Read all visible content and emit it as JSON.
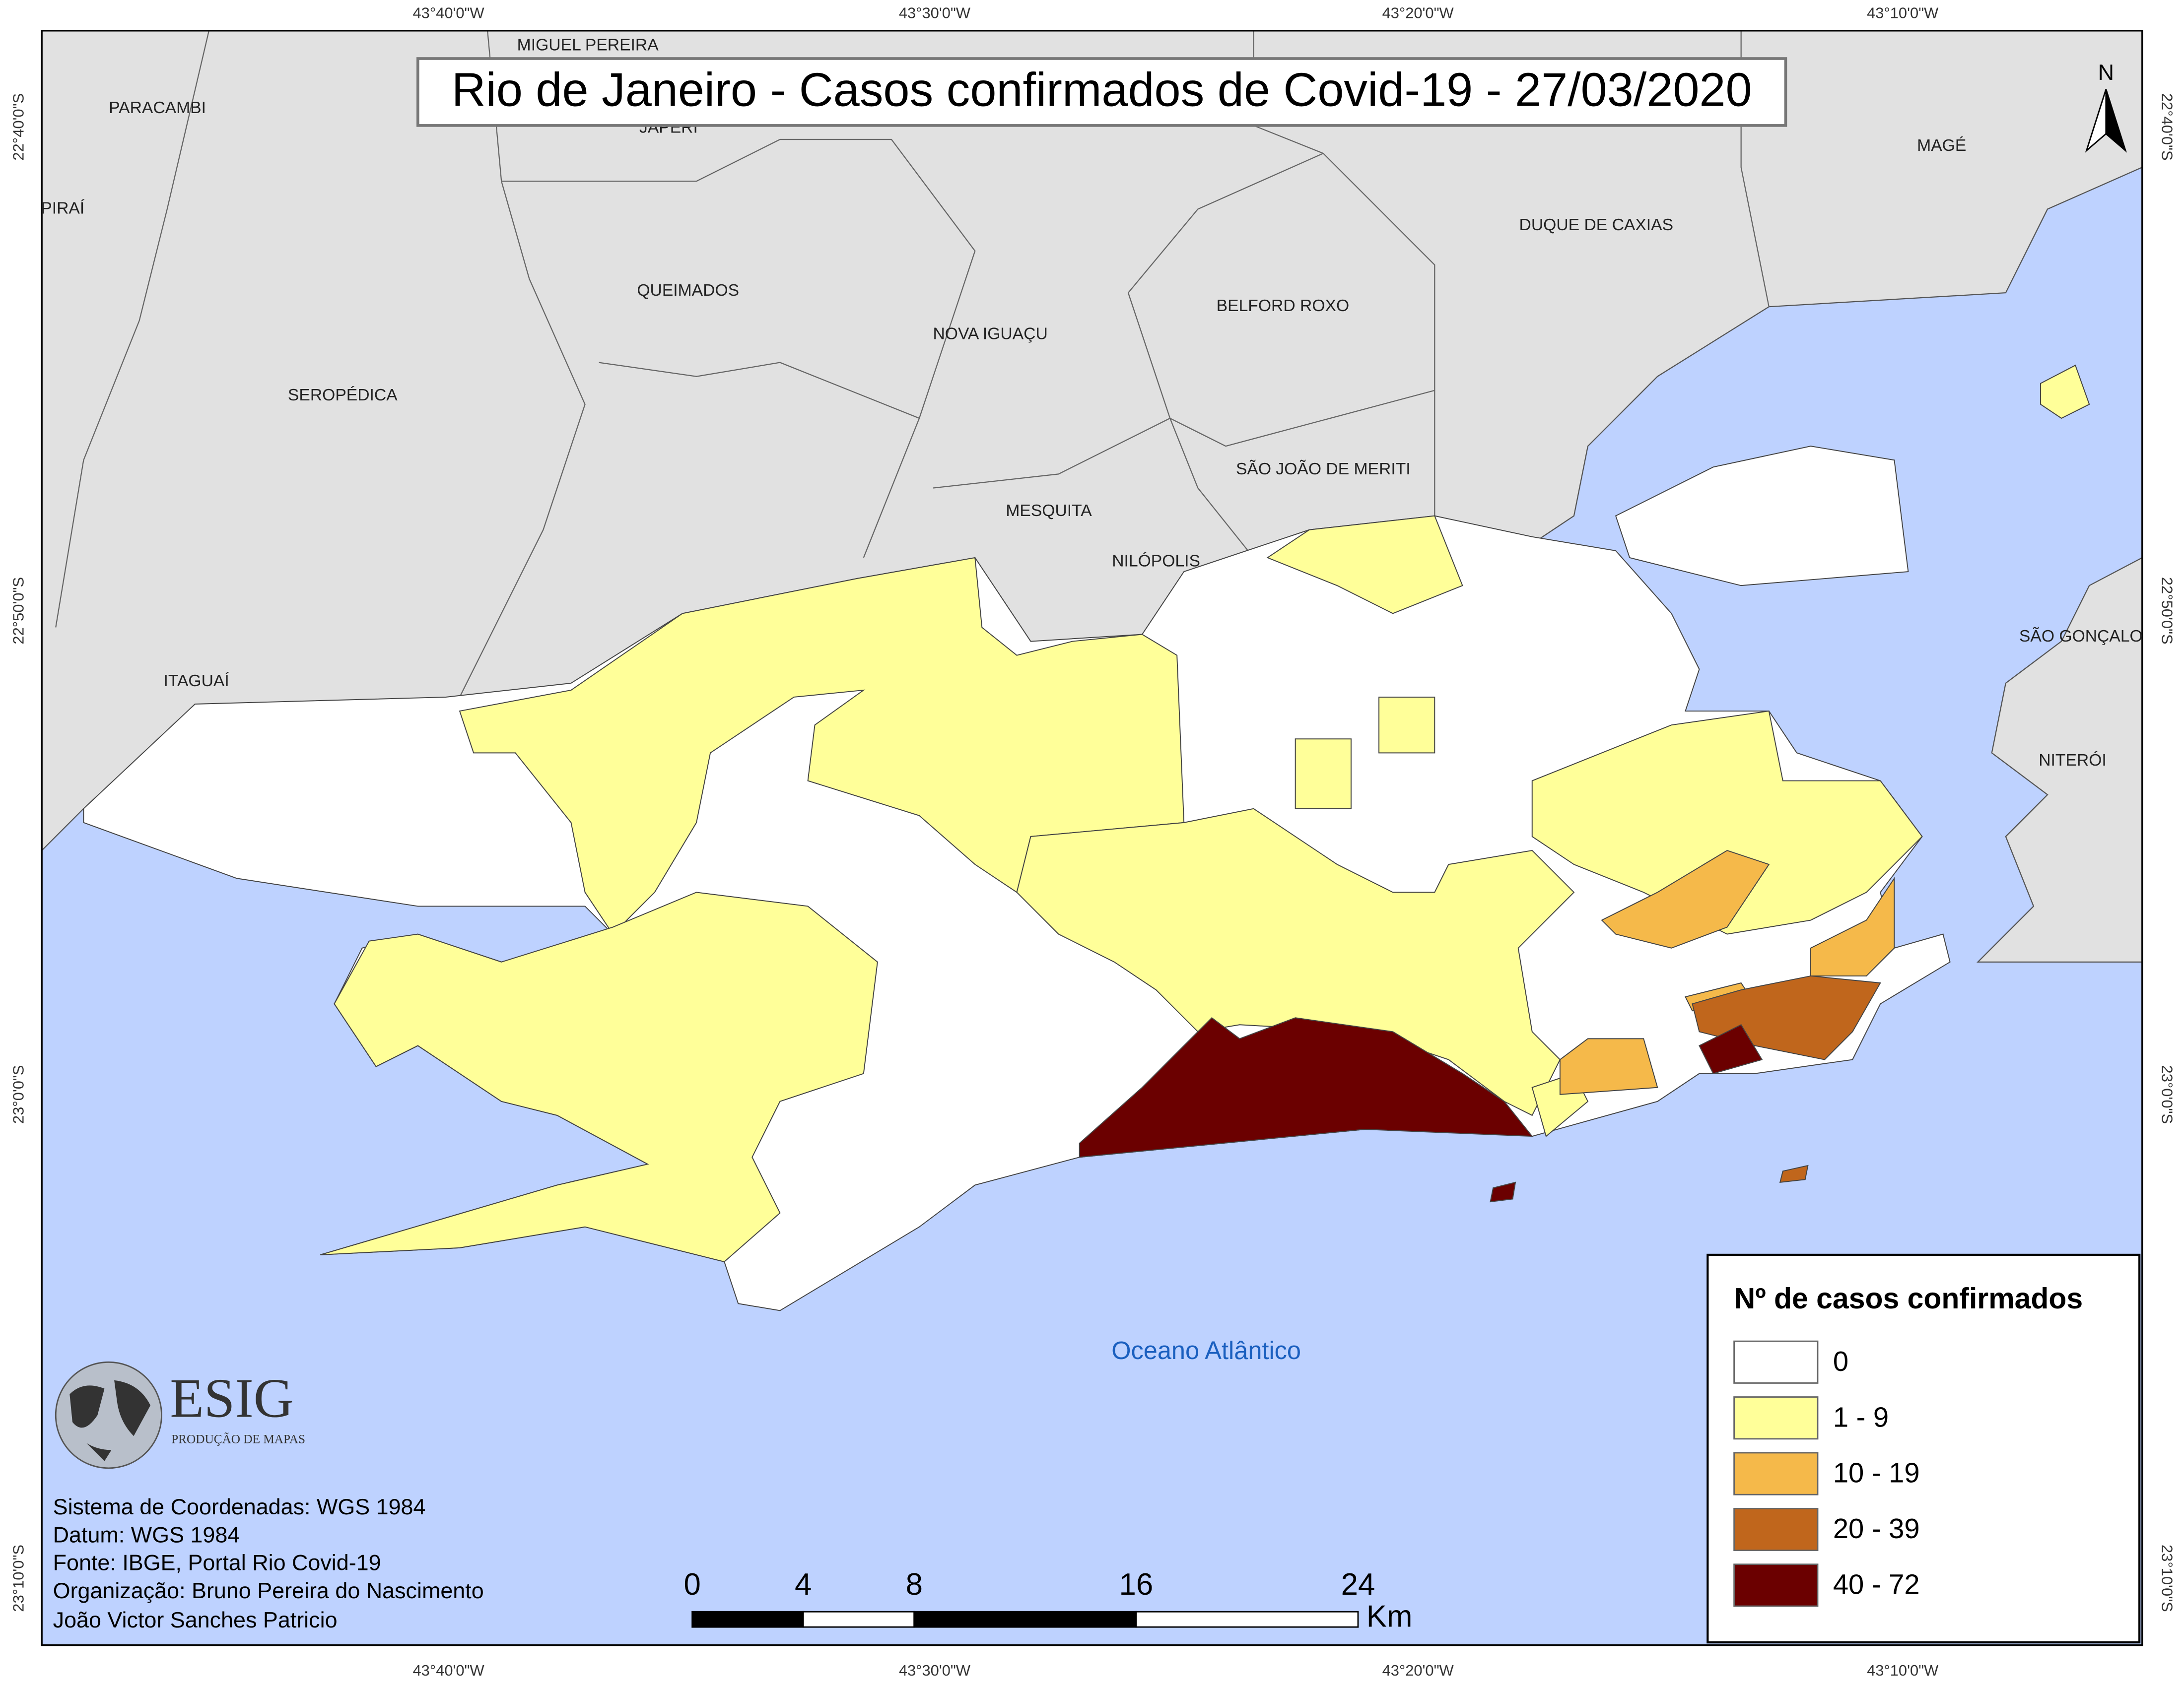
{
  "title": "Rio de Janeiro - Casos confirmados de Covid-19 - 27/03/2020",
  "north_arrow": "N",
  "longitude_labels": [
    "43°40'0\"W",
    "43°30'0\"W",
    "43°20'0\"W",
    "43°10'0\"W"
  ],
  "latitude_labels": [
    "22°40'0\"S",
    "22°50'0\"S",
    "23°0'0\"S",
    "23°10'0\"S"
  ],
  "places": [
    "MIGUEL PEREIRA",
    "PARACAMBI",
    "JAPERI",
    "PIRAÍ",
    "MAGÉ",
    "DUQUE DE CAXIAS",
    "QUEIMADOS",
    "BELFORD ROXO",
    "NOVA IGUAÇU",
    "SEROPÉDICA",
    "SÃO JOÃO DE MERITI",
    "MESQUITA",
    "NILÓPOLIS",
    "SÃO GONÇALO",
    "ITAGUAÍ",
    "NITERÓI"
  ],
  "ocean_label": "Oceano Atlântico",
  "legend": {
    "title": "Nº de casos confirmados",
    "items": [
      {
        "label": "0",
        "color": "#ffffff"
      },
      {
        "label": "1 - 9",
        "color": "#ffff99"
      },
      {
        "label": "10 - 19",
        "color": "#f5b94a"
      },
      {
        "label": "20 - 39",
        "color": "#c0661c"
      },
      {
        "label": "40 - 72",
        "color": "#6b0000"
      }
    ]
  },
  "logo": {
    "name": "ESIG",
    "subtitle": "PRODUÇÃO DE MAPAS"
  },
  "notes": [
    "Sistema de Coordenadas: WGS 1984",
    "Datum: WGS 1984",
    "Fonte: IBGE, Portal Rio Covid-19",
    "Organização: Bruno Pereira do Nascimento",
    "João Victor Sanches Patricio"
  ],
  "scale_bar": {
    "ticks": [
      0,
      4,
      8,
      16,
      24
    ],
    "unit": "Km"
  }
}
